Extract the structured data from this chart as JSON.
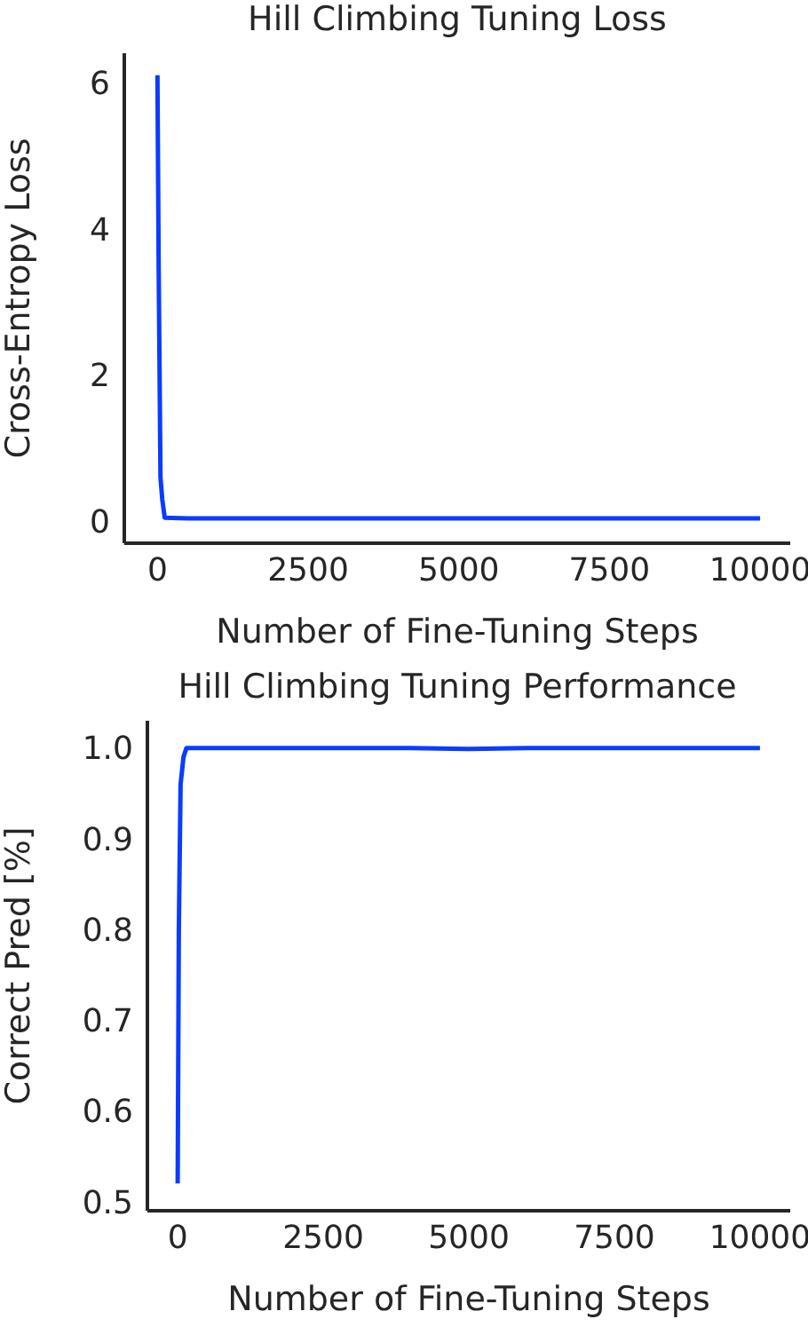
{
  "chart_data": [
    {
      "type": "line",
      "title": "Hill Climbing Tuning Loss",
      "xlabel": "Number of Fine-Tuning Steps",
      "ylabel": "Cross-Entropy Loss",
      "xlim": [
        -550,
        10500
      ],
      "xticks": [
        0,
        2500,
        5000,
        7500,
        10000
      ],
      "ylim": [
        -0.3,
        6.4
      ],
      "yticks": [
        0,
        2,
        4,
        6
      ],
      "grid": false,
      "legend": false,
      "series": [
        {
          "color": "#0a3cff",
          "x": [
            0,
            20,
            50,
            80,
            120,
            500,
            1000,
            2000,
            3000,
            4000,
            5000,
            6000,
            7000,
            8000,
            9000,
            10000
          ],
          "values": [
            6.1,
            3.5,
            0.6,
            0.3,
            0.05,
            0.04,
            0.04,
            0.04,
            0.04,
            0.04,
            0.04,
            0.04,
            0.04,
            0.04,
            0.04,
            0.04
          ]
        }
      ]
    },
    {
      "type": "line",
      "title": "Hill Climbing Tuning Performance",
      "xlabel": "Number of Fine-Tuning Steps",
      "ylabel": "Correct Pred [%]",
      "xlim": [
        -520,
        10520
      ],
      "xticks": [
        0,
        2500,
        5000,
        7500,
        10000
      ],
      "ylim": [
        0.49,
        1.03
      ],
      "yticks": [
        0.5,
        0.6,
        0.7,
        0.8,
        0.9,
        {
          "value": 1,
          "label": "1.0"
        }
      ],
      "grid": false,
      "legend": false,
      "series": [
        {
          "color": "#0a3cff",
          "x": [
            0,
            20,
            50,
            100,
            150,
            300,
            600,
            1000,
            1500,
            2000,
            3000,
            4000,
            5000,
            6000,
            7000,
            8000,
            9000,
            10000
          ],
          "values": [
            0.52,
            0.8,
            0.96,
            0.99,
            1.0,
            1.0,
            1.0,
            1.0,
            1.0,
            1.0,
            1.0,
            1.0,
            0.999,
            1.0,
            1.0,
            1.0,
            1.0,
            1.0
          ]
        }
      ]
    }
  ]
}
